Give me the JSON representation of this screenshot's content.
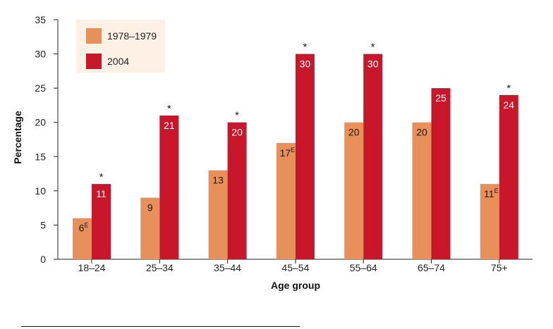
{
  "chart_data": {
    "type": "bar",
    "title": "",
    "xlabel": "Age group",
    "ylabel": "Percentage",
    "ylim": [
      0,
      35
    ],
    "yticks": [
      "0",
      "5",
      "10",
      "15",
      "20",
      "25",
      "30",
      "35"
    ],
    "categories": [
      "18–24",
      "25–34",
      "35–44",
      "45–54",
      "55–64",
      "65–74",
      "75+"
    ],
    "series": [
      {
        "name": "1978–1979",
        "color": "#e8905a",
        "values": [
          6,
          9,
          13,
          17,
          20,
          20,
          11
        ],
        "labels": [
          "6",
          "9",
          "13",
          "17",
          "20",
          "20",
          "11"
        ],
        "flags": [
          "E",
          "",
          "",
          "E",
          "",
          "",
          "E"
        ]
      },
      {
        "name": "2004",
        "color": "#c8162a",
        "values": [
          11,
          21,
          20,
          30,
          30,
          25,
          24
        ],
        "labels": [
          "11",
          "21",
          "20",
          "30",
          "30",
          "25",
          "24"
        ],
        "flags": [
          "*",
          "*",
          "*",
          "*",
          "*",
          "",
          "*"
        ]
      }
    ],
    "legend": "top-left",
    "legend_background": "#fdf1e6",
    "grid": false
  }
}
